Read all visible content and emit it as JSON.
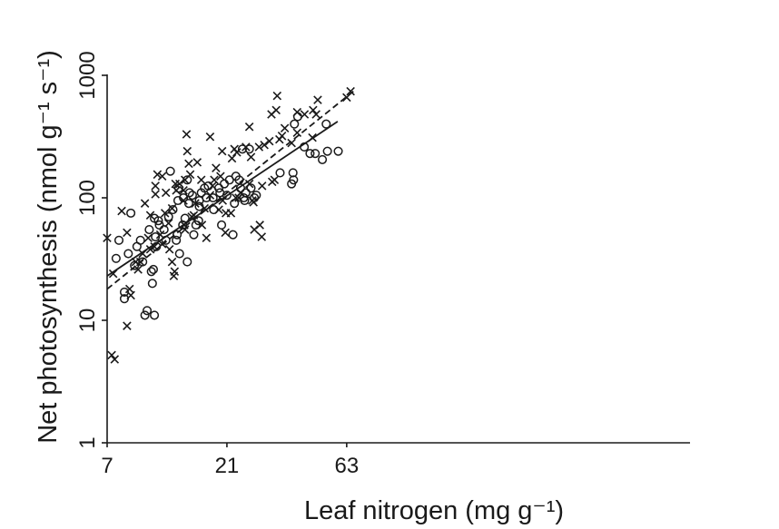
{
  "chart_data": {
    "type": "scatter",
    "title": "",
    "xlabel": "Leaf nitrogen (mg g⁻¹)",
    "ylabel": "Net photosynthesis (nmol g⁻¹ s⁻¹)",
    "xscale": "log",
    "yscale": "log",
    "xlim": [
      7,
      70
    ],
    "ylim": [
      1,
      1000
    ],
    "xticks": [
      "7",
      "21",
      "63"
    ],
    "yticks": [
      "1",
      "10",
      "100",
      "1000"
    ],
    "grid": false,
    "legend": "none",
    "series": [
      {
        "marker": "x",
        "points": [
          [
            7.0,
            47
          ],
          [
            7.3,
            5.2
          ],
          [
            7.5,
            4.8
          ],
          [
            7.4,
            24
          ],
          [
            8.0,
            78
          ],
          [
            8.4,
            9.0
          ],
          [
            8.4,
            52
          ],
          [
            8.6,
            18
          ],
          [
            8.7,
            16
          ],
          [
            9.1,
            30
          ],
          [
            9.3,
            26
          ],
          [
            9.5,
            30
          ],
          [
            9.7,
            35
          ],
          [
            9.9,
            90
          ],
          [
            10.2,
            47
          ],
          [
            10.4,
            72
          ],
          [
            10.4,
            38
          ],
          [
            10.8,
            40
          ],
          [
            10.9,
            125
          ],
          [
            10.9,
            107
          ],
          [
            11.1,
            155
          ],
          [
            11.4,
            50
          ],
          [
            11.6,
            150
          ],
          [
            11.6,
            42
          ],
          [
            11.9,
            75
          ],
          [
            12.0,
            110
          ],
          [
            12.3,
            62
          ],
          [
            12.4,
            38
          ],
          [
            12.7,
            30
          ],
          [
            12.7,
            82
          ],
          [
            12.9,
            23
          ],
          [
            13.0,
            25
          ],
          [
            13.1,
            130
          ],
          [
            13.2,
            115
          ],
          [
            13.6,
            130
          ],
          [
            14.1,
            95
          ],
          [
            14.1,
            115
          ],
          [
            14.2,
            60
          ],
          [
            14.3,
            140
          ],
          [
            14.3,
            55
          ],
          [
            14.5,
            330
          ],
          [
            14.6,
            240
          ],
          [
            14.8,
            190
          ],
          [
            15.0,
            155
          ],
          [
            15.2,
            70
          ],
          [
            15.5,
            72
          ],
          [
            15.7,
            90
          ],
          [
            16.0,
            195
          ],
          [
            16.6,
            140
          ],
          [
            16.7,
            60
          ],
          [
            17.1,
            82
          ],
          [
            17.4,
            47
          ],
          [
            18.0,
            315
          ],
          [
            18.0,
            105
          ],
          [
            18.4,
            125
          ],
          [
            18.7,
            140
          ],
          [
            19.0,
            175
          ],
          [
            19.5,
            80
          ],
          [
            19.8,
            150
          ],
          [
            20.1,
            240
          ],
          [
            20.2,
            95
          ],
          [
            20.7,
            52
          ],
          [
            20.8,
            75
          ],
          [
            21.8,
            75
          ],
          [
            22.0,
            210
          ],
          [
            22.5,
            250
          ],
          [
            22.8,
            100
          ],
          [
            23.0,
            235
          ],
          [
            23.4,
            100
          ],
          [
            23.8,
            110
          ],
          [
            25.0,
            260
          ],
          [
            25.8,
            380
          ],
          [
            25.8,
            130
          ],
          [
            26.2,
            215
          ],
          [
            26.5,
            95
          ],
          [
            26.8,
            92
          ],
          [
            27.0,
            55
          ],
          [
            28.2,
            260
          ],
          [
            28.4,
            60
          ],
          [
            28.9,
            48
          ],
          [
            29.0,
            125
          ],
          [
            29.6,
            270
          ],
          [
            31.0,
            290
          ],
          [
            31.6,
            480
          ],
          [
            31.8,
            135
          ],
          [
            32.5,
            140
          ],
          [
            33.0,
            520
          ],
          [
            33.3,
            680
          ],
          [
            34.0,
            300
          ],
          [
            34.8,
            320
          ],
          [
            35.7,
            370
          ],
          [
            38.0,
            280
          ],
          [
            40.0,
            500
          ],
          [
            40.0,
            340
          ],
          [
            42.8,
            480
          ],
          [
            46.0,
            310
          ],
          [
            46.3,
            520
          ],
          [
            47.6,
            480
          ],
          [
            48.3,
            630
          ],
          [
            63.0,
            660
          ],
          [
            65.3,
            740
          ]
        ]
      },
      {
        "marker": "o",
        "points": [
          [
            7.6,
            32
          ],
          [
            7.8,
            45
          ],
          [
            8.2,
            17
          ],
          [
            8.2,
            15
          ],
          [
            8.5,
            35
          ],
          [
            8.7,
            75
          ],
          [
            9.0,
            28
          ],
          [
            9.2,
            40
          ],
          [
            9.5,
            45
          ],
          [
            9.7,
            30
          ],
          [
            9.9,
            11
          ],
          [
            10.1,
            12
          ],
          [
            10.3,
            55
          ],
          [
            10.5,
            25
          ],
          [
            10.6,
            20
          ],
          [
            10.7,
            26
          ],
          [
            10.8,
            68
          ],
          [
            10.8,
            11
          ],
          [
            10.9,
            48
          ],
          [
            11.0,
            40
          ],
          [
            11.2,
            65
          ],
          [
            11.3,
            60
          ],
          [
            11.8,
            55
          ],
          [
            12.0,
            45
          ],
          [
            12.3,
            70
          ],
          [
            12.5,
            165
          ],
          [
            12.8,
            80
          ],
          [
            13.2,
            45
          ],
          [
            13.3,
            50
          ],
          [
            13.4,
            95
          ],
          [
            13.5,
            120
          ],
          [
            13.6,
            35
          ],
          [
            14.0,
            60
          ],
          [
            14.1,
            100
          ],
          [
            14.3,
            68
          ],
          [
            14.6,
            30
          ],
          [
            14.6,
            140
          ],
          [
            14.8,
            90
          ],
          [
            14.9,
            110
          ],
          [
            15.3,
            105
          ],
          [
            15.5,
            50
          ],
          [
            15.8,
            60
          ],
          [
            16.2,
            65
          ],
          [
            16.3,
            95
          ],
          [
            16.3,
            85
          ],
          [
            16.6,
            110
          ],
          [
            17.1,
            120
          ],
          [
            17.4,
            100
          ],
          [
            17.7,
            125
          ],
          [
            18.5,
            100
          ],
          [
            18.6,
            80
          ],
          [
            19.5,
            120
          ],
          [
            19.7,
            110
          ],
          [
            20.0,
            60
          ],
          [
            20.5,
            130
          ],
          [
            21.0,
            105
          ],
          [
            21.5,
            140
          ],
          [
            22.2,
            50
          ],
          [
            22.5,
            90
          ],
          [
            22.8,
            150
          ],
          [
            23.5,
            140
          ],
          [
            23.8,
            120
          ],
          [
            24.2,
            250
          ],
          [
            24.5,
            100
          ],
          [
            24.7,
            95
          ],
          [
            25.0,
            110
          ],
          [
            25.8,
            250
          ],
          [
            26.2,
            120
          ],
          [
            27.0,
            100
          ],
          [
            27.5,
            105
          ],
          [
            34.2,
            160
          ],
          [
            38.0,
            130
          ],
          [
            38.5,
            160
          ],
          [
            38.7,
            140
          ],
          [
            39.0,
            400
          ],
          [
            40.2,
            460
          ],
          [
            42.7,
            260
          ],
          [
            45.0,
            230
          ],
          [
            47.2,
            230
          ],
          [
            50.4,
            205
          ],
          [
            52.2,
            400
          ],
          [
            52.8,
            240
          ],
          [
            58.3,
            240
          ]
        ]
      }
    ],
    "fit_lines": [
      {
        "style": "solid",
        "x": [
          7.0,
          58.0
        ],
        "y": [
          23,
          420
        ]
      },
      {
        "style": "dashed",
        "x": [
          7.0,
          67.0
        ],
        "y": [
          18,
          740
        ]
      }
    ]
  }
}
